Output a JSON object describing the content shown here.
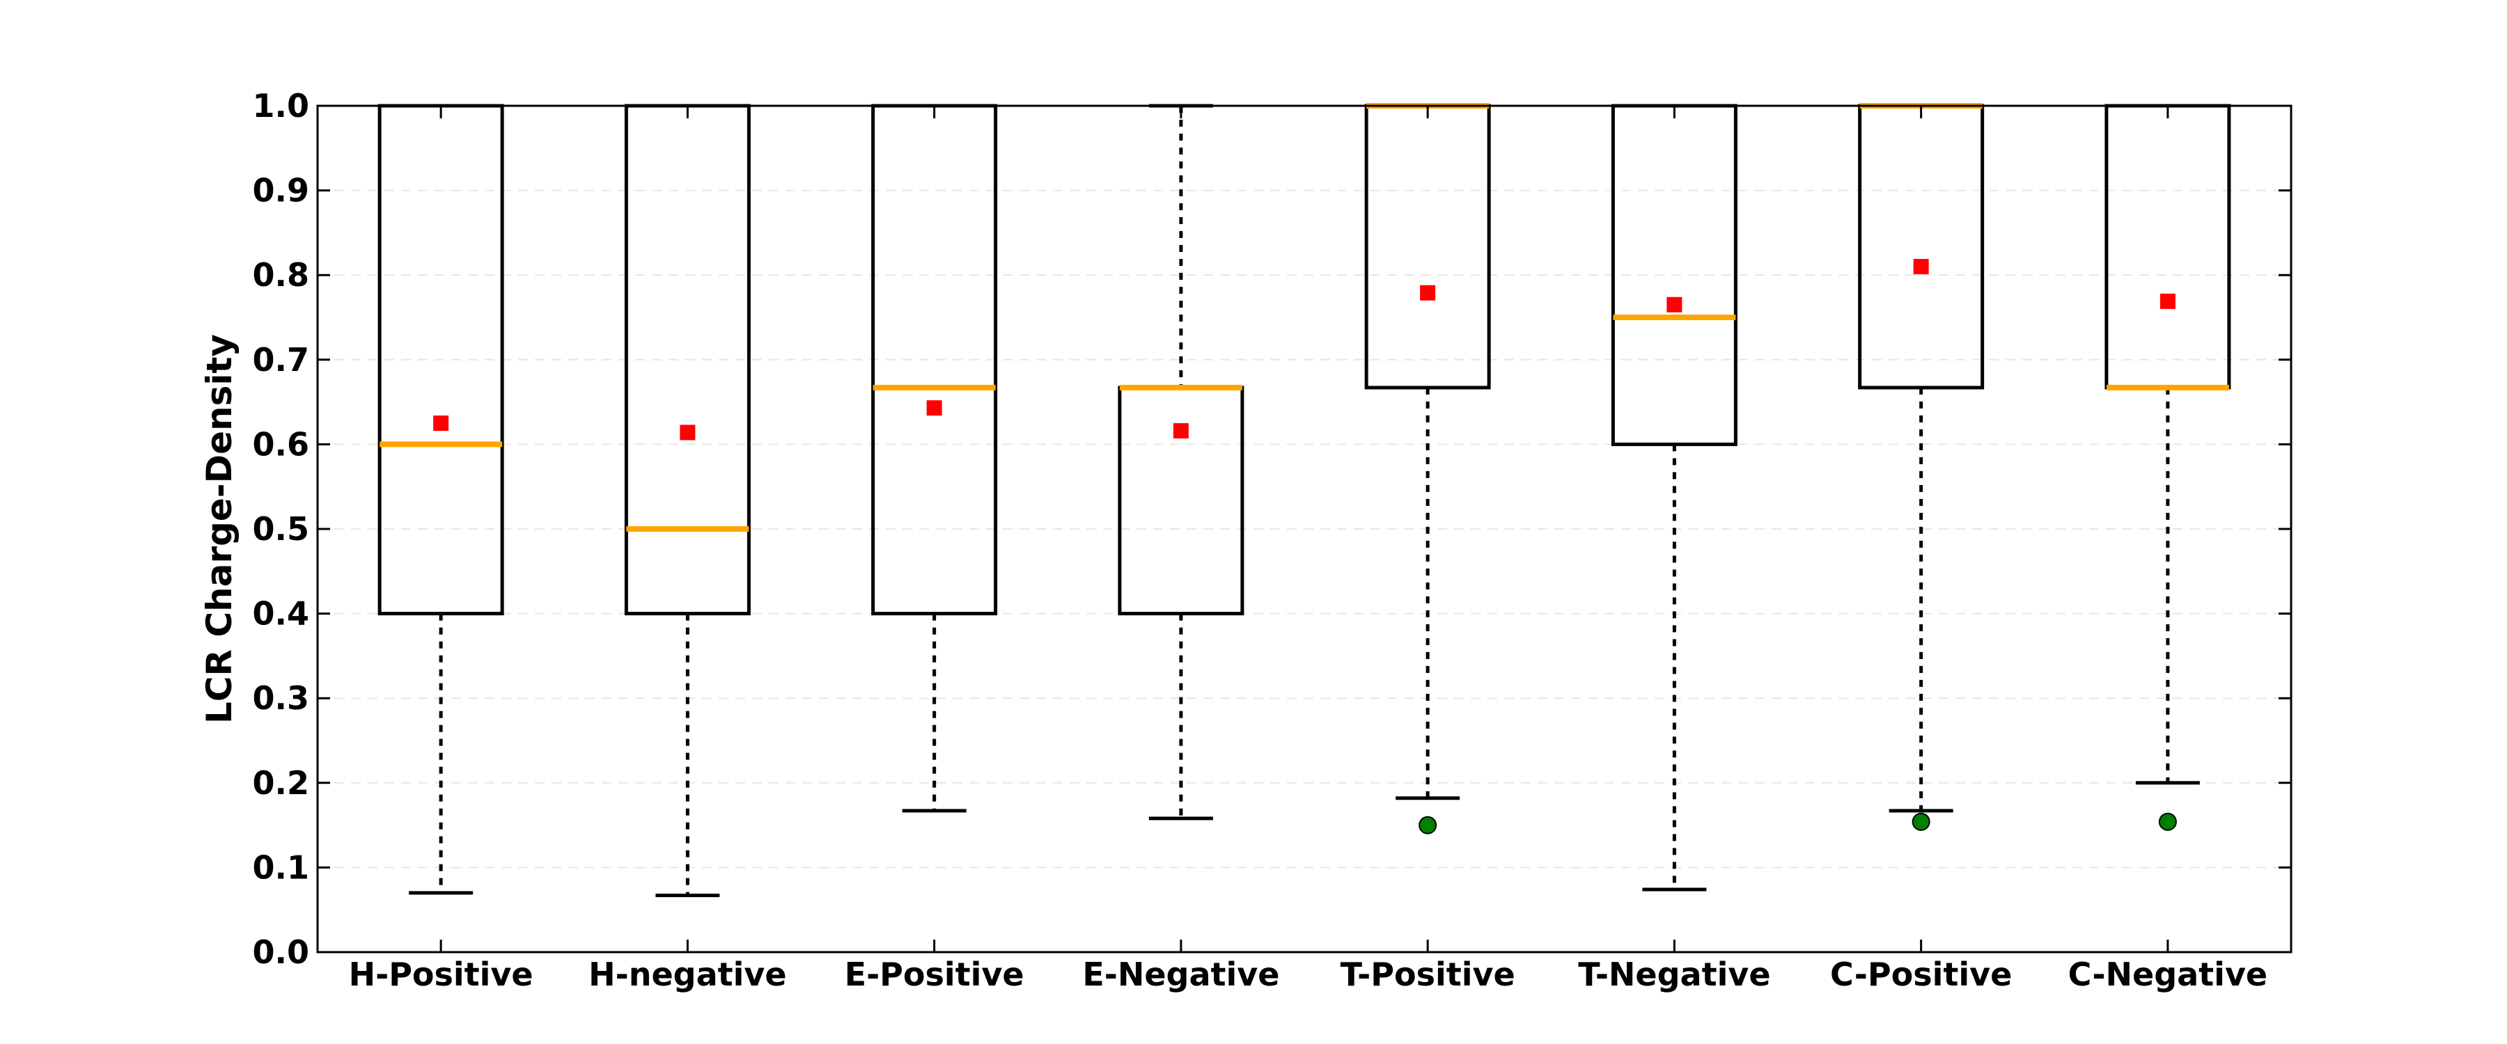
{
  "chart_data": {
    "type": "box",
    "title": "",
    "xlabel": "",
    "ylabel": "LCR Charge-Density",
    "ylim": [
      0.0,
      1.0
    ],
    "yticks": [
      "0.0",
      "0.1",
      "0.2",
      "0.3",
      "0.4",
      "0.5",
      "0.6",
      "0.7",
      "0.8",
      "0.9",
      "1.0"
    ],
    "grid": "horizontal dashed",
    "categories": [
      "H-Positive",
      "H-negative",
      "E-Positive",
      "E-Negative",
      "T-Positive",
      "T-Negative",
      "C-Positive",
      "C-Negative"
    ],
    "boxes": [
      {
        "whisker_low": 0.07,
        "q1": 0.4,
        "median": 0.6,
        "q3": 1.0,
        "whisker_high": 1.0,
        "mean": 0.625,
        "outliers": []
      },
      {
        "whisker_low": 0.067,
        "q1": 0.4,
        "median": 0.5,
        "q3": 1.0,
        "whisker_high": 1.0,
        "mean": 0.614,
        "outliers": []
      },
      {
        "whisker_low": 0.167,
        "q1": 0.4,
        "median": 0.667,
        "q3": 1.0,
        "whisker_high": 1.0,
        "mean": 0.643,
        "outliers": []
      },
      {
        "whisker_low": 0.158,
        "q1": 0.4,
        "median": 0.667,
        "q3": 0.667,
        "whisker_high": 1.0,
        "mean": 0.616,
        "outliers": []
      },
      {
        "whisker_low": 0.182,
        "q1": 0.667,
        "median": 1.0,
        "q3": 1.0,
        "whisker_high": 1.0,
        "mean": 0.779,
        "outliers": [
          0.15
        ]
      },
      {
        "whisker_low": 0.074,
        "q1": 0.6,
        "median": 0.75,
        "q3": 1.0,
        "whisker_high": 1.0,
        "mean": 0.765,
        "outliers": []
      },
      {
        "whisker_low": 0.167,
        "q1": 0.667,
        "median": 1.0,
        "q3": 1.0,
        "whisker_high": 1.0,
        "mean": 0.81,
        "outliers": [
          0.154
        ]
      },
      {
        "whisker_low": 0.2,
        "q1": 0.667,
        "median": 0.667,
        "q3": 1.0,
        "whisker_high": 1.0,
        "mean": 0.769,
        "outliers": [
          0.154
        ]
      }
    ],
    "colors": {
      "box": "#000000",
      "median": "#ffa500",
      "mean": "#ff0000",
      "outlier": "#008000",
      "grid": "#e6e6e6"
    }
  }
}
